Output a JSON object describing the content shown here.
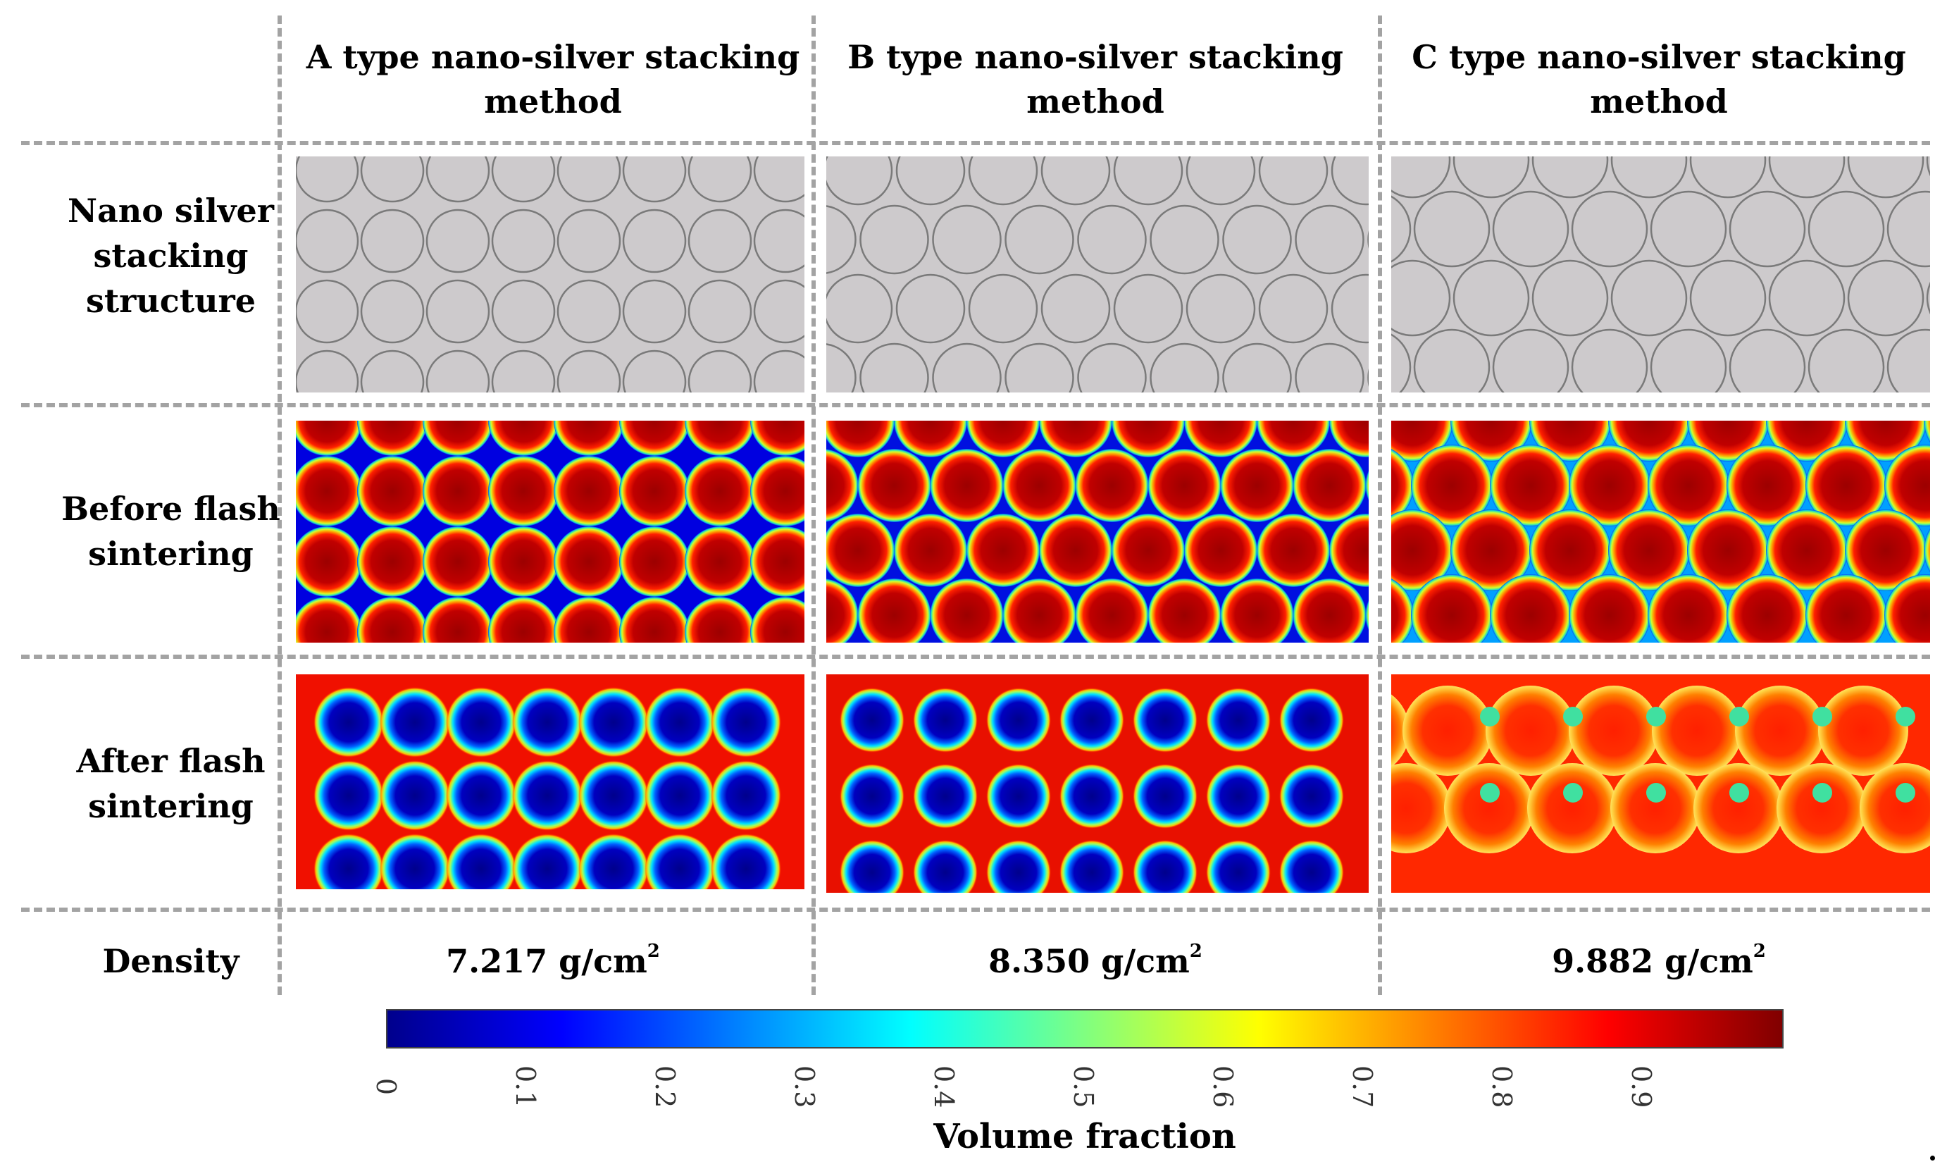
{
  "columns": [
    {
      "header_line1": "A type nano-silver stacking",
      "header_line2": "method",
      "density_value": "7.217 g/cm",
      "density_exp": "2"
    },
    {
      "header_line1": "B type nano-silver stacking",
      "header_line2": "method",
      "density_value": "8.350 g/cm",
      "density_exp": "2"
    },
    {
      "header_line1": "C type nano-silver stacking",
      "header_line2": "method",
      "density_value": "9.882 g/cm",
      "density_exp": "2"
    }
  ],
  "rows": [
    {
      "line1": "Nano silver",
      "line2": "stacking",
      "line3": "structure"
    },
    {
      "line1": "Before flash",
      "line2": "sintering"
    },
    {
      "line1": "After flash",
      "line2": "sintering"
    },
    {
      "line1": "Density"
    }
  ],
  "colorbar": {
    "title": "Volume fraction",
    "ticks": [
      "0",
      "0.1",
      "0.2",
      "0.3",
      "0.4",
      "0.5",
      "0.6",
      "0.7",
      "0.8",
      "0.9"
    ],
    "range": [
      0,
      1
    ],
    "colors": [
      "#00008c",
      "#0000ff",
      "#0080ff",
      "#00ffff",
      "#80ff80",
      "#ffff00",
      "#ff8000",
      "#ff0000",
      "#800000"
    ]
  },
  "colors": {
    "grid_line": "#a3a3a3",
    "panel_gray": "#cdcacc",
    "circle_stroke": "#7a7a7a"
  }
}
